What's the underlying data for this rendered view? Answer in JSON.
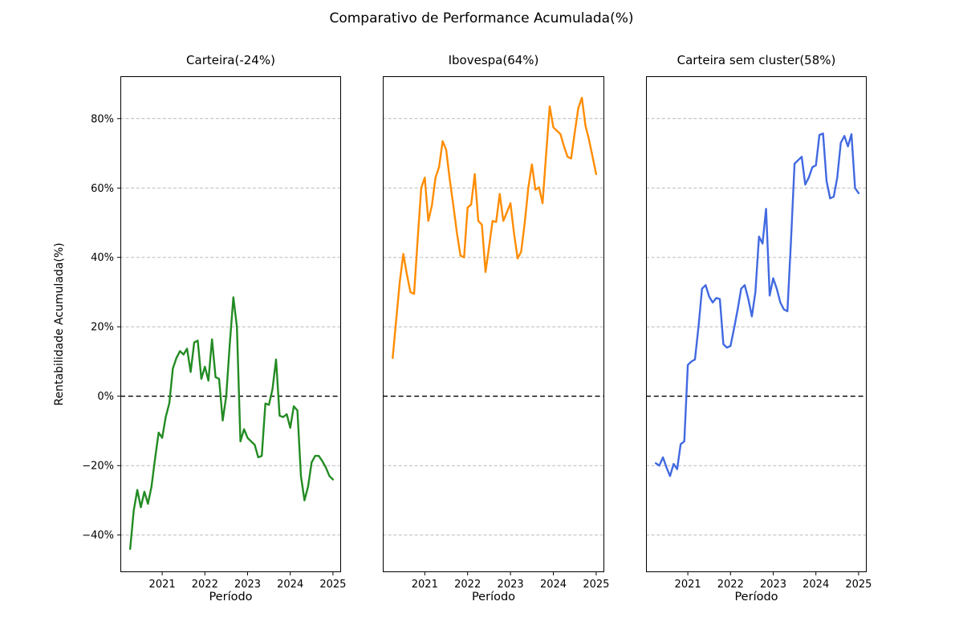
{
  "chart_data": {
    "type": "line",
    "title": "Comparativo de Performance Acumulada(%)",
    "xlabel": "Período",
    "ylabel": "Rentabilidade Acumulada(%)",
    "x_frequency": "monthly",
    "x_range_label": "2020-04 to 2025-01",
    "xticks": [
      2021,
      2022,
      2023,
      2024,
      2025
    ],
    "yticks": [
      80,
      60,
      40,
      20,
      0,
      -20,
      -40
    ],
    "ytick_suffix": "%",
    "xlim": [
      2020.02,
      2025.19
    ],
    "ylim": [
      -50.7,
      92.2
    ],
    "grid": "horizontal dashed",
    "grid_color": "#b9b9b9",
    "zero_line_color": "#000000",
    "zero_line_style": "dashed",
    "x": [
      2020.25,
      2020.333,
      2020.417,
      2020.5,
      2020.583,
      2020.667,
      2020.75,
      2020.833,
      2020.917,
      2021.0,
      2021.083,
      2021.167,
      2021.25,
      2021.333,
      2021.417,
      2021.5,
      2021.583,
      2021.667,
      2021.75,
      2021.833,
      2021.917,
      2022.0,
      2022.083,
      2022.167,
      2022.25,
      2022.333,
      2022.417,
      2022.5,
      2022.583,
      2022.667,
      2022.75,
      2022.833,
      2022.917,
      2023.0,
      2023.083,
      2023.167,
      2023.25,
      2023.333,
      2023.417,
      2023.5,
      2023.583,
      2023.667,
      2023.75,
      2023.833,
      2023.917,
      2024.0,
      2024.083,
      2024.167,
      2024.25,
      2024.333,
      2024.417,
      2024.5,
      2024.583,
      2024.667,
      2024.75,
      2024.833,
      2024.917,
      2025.0
    ],
    "subplots": [
      {
        "title": "Carteira(-24%)",
        "series_name": "Carteira",
        "final_value_pct": -24,
        "color": "#228B22",
        "values": [
          -44,
          -33,
          -27,
          -32,
          -27.5,
          -31,
          -26,
          -18,
          -10.5,
          -12,
          -6,
          -2,
          8,
          11,
          13,
          12,
          13.7,
          7,
          15.5,
          16,
          5,
          8.5,
          4.5,
          16.4,
          5.5,
          5,
          -7,
          0,
          15,
          28.5,
          20,
          -13,
          -9.5,
          -12,
          -13,
          -14,
          -17.6,
          -17.2,
          -2.1,
          -2.5,
          2,
          10.6,
          -5.6,
          -6,
          -5.2,
          -9.1,
          -2.9,
          -4.1,
          -23,
          -30,
          -26,
          -19.1,
          -17.2,
          -17.2,
          -18.7,
          -20.5,
          -23,
          -24
        ]
      },
      {
        "title": "Ibovespa(64%)",
        "series_name": "Ibovespa",
        "final_value_pct": 64,
        "color": "#FF8C00",
        "values": [
          11,
          22,
          33,
          41,
          35,
          30,
          29.5,
          45,
          60,
          63,
          50.5,
          55,
          63,
          66,
          73.5,
          71,
          62.5,
          55,
          47,
          40.5,
          40,
          54.4,
          55.2,
          64,
          50.5,
          49.4,
          35.8,
          43,
          50.5,
          50.2,
          58.3,
          50.5,
          53,
          55.6,
          47,
          39.7,
          41.6,
          50,
          60,
          66.8,
          59.5,
          60.2,
          55.6,
          70,
          83.5,
          77.5,
          76.5,
          75.5,
          72,
          69,
          68.5,
          76,
          83,
          86,
          78,
          74,
          69,
          64
        ]
      },
      {
        "title": "Carteira sem cluster(58%)",
        "series_name": "Carteira sem cluster",
        "final_value_pct": 58,
        "color": "#4169E1",
        "values": [
          -19.3,
          -20,
          -17.6,
          -20.5,
          -23,
          -19.5,
          -21,
          -13.8,
          -13,
          9,
          10,
          10.6,
          20,
          31,
          32,
          28.7,
          27,
          28.3,
          28,
          15,
          14,
          14.5,
          19.5,
          25,
          31,
          32,
          28,
          23,
          30,
          46,
          44,
          54,
          29,
          34,
          31,
          27,
          25,
          24.5,
          45,
          67,
          68,
          69,
          61,
          63,
          66,
          66.5,
          75.3,
          75.7,
          62,
          57,
          57.5,
          63,
          73,
          75,
          72,
          75.5,
          60,
          58.5
        ]
      }
    ]
  }
}
